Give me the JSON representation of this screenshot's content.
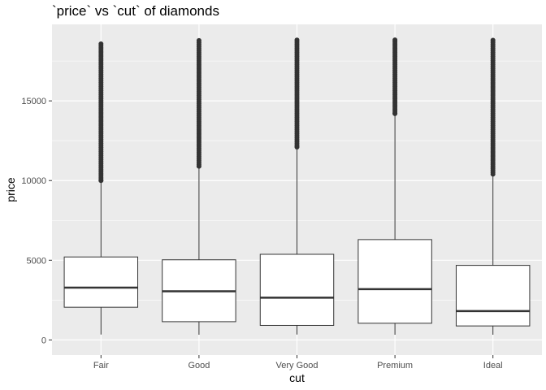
{
  "chart_data": {
    "type": "boxplot",
    "title": "`price` vs `cut` of diamonds",
    "xlabel": "cut",
    "ylabel": "price",
    "categories": [
      "Fair",
      "Good",
      "Very Good",
      "Premium",
      "Ideal"
    ],
    "y_ticks": [
      0,
      5000,
      10000,
      15000
    ],
    "y_tick_labels": [
      "0",
      "5000",
      "10000",
      "15000"
    ],
    "ylim": [
      -950,
      19800
    ],
    "grid": true,
    "legend": "none",
    "colors": {
      "panel": "#ebebeb",
      "grid": "#ffffff",
      "box_fill": "#ffffff",
      "stroke": "#333333"
    },
    "boxes": [
      {
        "category": "Fair",
        "lower_whisker": 337,
        "q1": 2050,
        "median": 3282,
        "q3": 5206,
        "upper_whisker": 9950,
        "outlier_min": 10000,
        "outlier_max": 18574
      },
      {
        "category": "Good",
        "lower_whisker": 327,
        "q1": 1145,
        "median": 3050,
        "q3": 5028,
        "upper_whisker": 10850,
        "outlier_min": 10900,
        "outlier_max": 18788
      },
      {
        "category": "Very Good",
        "lower_whisker": 336,
        "q1": 912,
        "median": 2648,
        "q3": 5373,
        "upper_whisker": 12050,
        "outlier_min": 12100,
        "outlier_max": 18818
      },
      {
        "category": "Premium",
        "lower_whisker": 326,
        "q1": 1046,
        "median": 3185,
        "q3": 6296,
        "upper_whisker": 14150,
        "outlier_min": 14200,
        "outlier_max": 18823
      },
      {
        "category": "Ideal",
        "lower_whisker": 326,
        "q1": 878,
        "median": 1810,
        "q3": 4678,
        "upper_whisker": 10350,
        "outlier_min": 10400,
        "outlier_max": 18806
      }
    ]
  }
}
